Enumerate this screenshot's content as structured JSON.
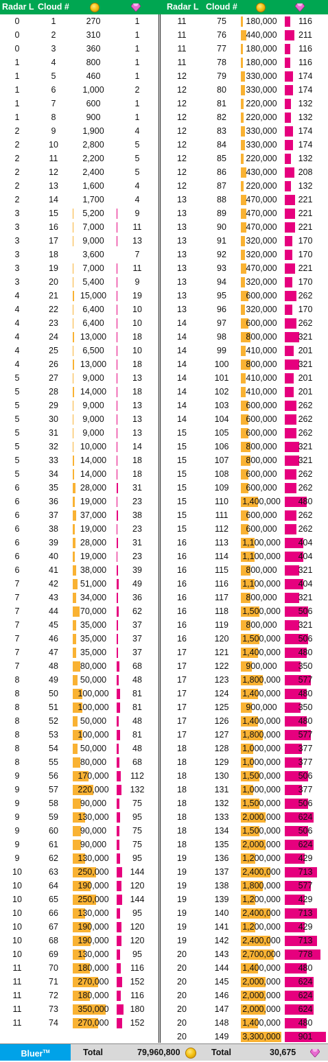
{
  "headers": {
    "radar": "Radar L",
    "cloud": "Cloud #",
    "coin_icon": "gold-coin-icon",
    "gem_icon": "pink-gem-icon"
  },
  "colors": {
    "header_bg": "#00a651",
    "gold_bar": "#f9b233",
    "gem_bar": "#e6007e",
    "brand_bg": "#00a2e8"
  },
  "left_rows": [
    {
      "radar": "0",
      "cloud": "1",
      "gold": "270",
      "gems": "1"
    },
    {
      "radar": "0",
      "cloud": "2",
      "gold": "310",
      "gems": "1"
    },
    {
      "radar": "0",
      "cloud": "3",
      "gold": "360",
      "gems": "1"
    },
    {
      "radar": "1",
      "cloud": "4",
      "gold": "800",
      "gems": "1"
    },
    {
      "radar": "1",
      "cloud": "5",
      "gold": "460",
      "gems": "1"
    },
    {
      "radar": "1",
      "cloud": "6",
      "gold": "1,000",
      "gems": "2"
    },
    {
      "radar": "1",
      "cloud": "7",
      "gold": "600",
      "gems": "1"
    },
    {
      "radar": "1",
      "cloud": "8",
      "gold": "900",
      "gems": "1"
    },
    {
      "radar": "2",
      "cloud": "9",
      "gold": "1,900",
      "gems": "4"
    },
    {
      "radar": "2",
      "cloud": "10",
      "gold": "2,800",
      "gems": "5"
    },
    {
      "radar": "2",
      "cloud": "11",
      "gold": "2,200",
      "gems": "5"
    },
    {
      "radar": "2",
      "cloud": "12",
      "gold": "2,400",
      "gems": "5"
    },
    {
      "radar": "2",
      "cloud": "13",
      "gold": "1,600",
      "gems": "4"
    },
    {
      "radar": "2",
      "cloud": "14",
      "gold": "1,700",
      "gems": "4"
    },
    {
      "radar": "3",
      "cloud": "15",
      "gold": "5,200",
      "gems": "9"
    },
    {
      "radar": "3",
      "cloud": "16",
      "gold": "7,000",
      "gems": "11"
    },
    {
      "radar": "3",
      "cloud": "17",
      "gold": "9,000",
      "gems": "13"
    },
    {
      "radar": "3",
      "cloud": "18",
      "gold": "3,600",
      "gems": "7"
    },
    {
      "radar": "3",
      "cloud": "19",
      "gold": "7,000",
      "gems": "11"
    },
    {
      "radar": "3",
      "cloud": "20",
      "gold": "5,400",
      "gems": "9"
    },
    {
      "radar": "4",
      "cloud": "21",
      "gold": "15,000",
      "gems": "19"
    },
    {
      "radar": "4",
      "cloud": "22",
      "gold": "6,400",
      "gems": "10"
    },
    {
      "radar": "4",
      "cloud": "23",
      "gold": "6,400",
      "gems": "10"
    },
    {
      "radar": "4",
      "cloud": "24",
      "gold": "13,000",
      "gems": "18"
    },
    {
      "radar": "4",
      "cloud": "25",
      "gold": "6,500",
      "gems": "10"
    },
    {
      "radar": "4",
      "cloud": "26",
      "gold": "13,000",
      "gems": "18"
    },
    {
      "radar": "5",
      "cloud": "27",
      "gold": "9,000",
      "gems": "13"
    },
    {
      "radar": "5",
      "cloud": "28",
      "gold": "14,000",
      "gems": "18"
    },
    {
      "radar": "5",
      "cloud": "29",
      "gold": "9,000",
      "gems": "13"
    },
    {
      "radar": "5",
      "cloud": "30",
      "gold": "9,000",
      "gems": "13"
    },
    {
      "radar": "5",
      "cloud": "31",
      "gold": "9,000",
      "gems": "13"
    },
    {
      "radar": "5",
      "cloud": "32",
      "gold": "10,000",
      "gems": "14"
    },
    {
      "radar": "5",
      "cloud": "33",
      "gold": "14,000",
      "gems": "18"
    },
    {
      "radar": "5",
      "cloud": "34",
      "gold": "14,000",
      "gems": "18"
    },
    {
      "radar": "6",
      "cloud": "35",
      "gold": "28,000",
      "gems": "31"
    },
    {
      "radar": "6",
      "cloud": "36",
      "gold": "19,000",
      "gems": "23"
    },
    {
      "radar": "6",
      "cloud": "37",
      "gold": "37,000",
      "gems": "38"
    },
    {
      "radar": "6",
      "cloud": "38",
      "gold": "19,000",
      "gems": "23"
    },
    {
      "radar": "6",
      "cloud": "39",
      "gold": "28,000",
      "gems": "31"
    },
    {
      "radar": "6",
      "cloud": "40",
      "gold": "19,000",
      "gems": "23"
    },
    {
      "radar": "6",
      "cloud": "41",
      "gold": "38,000",
      "gems": "39"
    },
    {
      "radar": "7",
      "cloud": "42",
      "gold": "51,000",
      "gems": "49"
    },
    {
      "radar": "7",
      "cloud": "43",
      "gold": "34,000",
      "gems": "36"
    },
    {
      "radar": "7",
      "cloud": "44",
      "gold": "70,000",
      "gems": "62"
    },
    {
      "radar": "7",
      "cloud": "45",
      "gold": "35,000",
      "gems": "37"
    },
    {
      "radar": "7",
      "cloud": "46",
      "gold": "35,000",
      "gems": "37"
    },
    {
      "radar": "7",
      "cloud": "47",
      "gold": "35,000",
      "gems": "37"
    },
    {
      "radar": "7",
      "cloud": "48",
      "gold": "80,000",
      "gems": "68"
    },
    {
      "radar": "8",
      "cloud": "49",
      "gold": "50,000",
      "gems": "48"
    },
    {
      "radar": "8",
      "cloud": "50",
      "gold": "100,000",
      "gems": "81"
    },
    {
      "radar": "8",
      "cloud": "51",
      "gold": "100,000",
      "gems": "81"
    },
    {
      "radar": "8",
      "cloud": "52",
      "gold": "50,000",
      "gems": "48"
    },
    {
      "radar": "8",
      "cloud": "53",
      "gold": "100,000",
      "gems": "81"
    },
    {
      "radar": "8",
      "cloud": "54",
      "gold": "50,000",
      "gems": "48"
    },
    {
      "radar": "8",
      "cloud": "55",
      "gold": "80,000",
      "gems": "68"
    },
    {
      "radar": "9",
      "cloud": "56",
      "gold": "170,000",
      "gems": "112"
    },
    {
      "radar": "9",
      "cloud": "57",
      "gold": "220,000",
      "gems": "132"
    },
    {
      "radar": "9",
      "cloud": "58",
      "gold": "90,000",
      "gems": "75"
    },
    {
      "radar": "9",
      "cloud": "59",
      "gold": "130,000",
      "gems": "95"
    },
    {
      "radar": "9",
      "cloud": "60",
      "gold": "90,000",
      "gems": "75"
    },
    {
      "radar": "9",
      "cloud": "61",
      "gold": "90,000",
      "gems": "75"
    },
    {
      "radar": "9",
      "cloud": "62",
      "gold": "130,000",
      "gems": "95"
    },
    {
      "radar": "10",
      "cloud": "63",
      "gold": "250,000",
      "gems": "144"
    },
    {
      "radar": "10",
      "cloud": "64",
      "gold": "190,000",
      "gems": "120"
    },
    {
      "radar": "10",
      "cloud": "65",
      "gold": "250,000",
      "gems": "144"
    },
    {
      "radar": "10",
      "cloud": "66",
      "gold": "130,000",
      "gems": "95"
    },
    {
      "radar": "10",
      "cloud": "67",
      "gold": "190,000",
      "gems": "120"
    },
    {
      "radar": "10",
      "cloud": "68",
      "gold": "190,000",
      "gems": "120"
    },
    {
      "radar": "10",
      "cloud": "69",
      "gold": "130,000",
      "gems": "95"
    },
    {
      "radar": "11",
      "cloud": "70",
      "gold": "180,000",
      "gems": "116"
    },
    {
      "radar": "11",
      "cloud": "71",
      "gold": "270,000",
      "gems": "152"
    },
    {
      "radar": "11",
      "cloud": "72",
      "gold": "180,000",
      "gems": "116"
    },
    {
      "radar": "11",
      "cloud": "73",
      "gold": "350,000",
      "gems": "180"
    },
    {
      "radar": "11",
      "cloud": "74",
      "gold": "270,000",
      "gems": "152"
    }
  ],
  "right_rows": [
    {
      "radar": "11",
      "cloud": "75",
      "gold": "180,000",
      "gems": "116"
    },
    {
      "radar": "11",
      "cloud": "76",
      "gold": "440,000",
      "gems": "211"
    },
    {
      "radar": "11",
      "cloud": "77",
      "gold": "180,000",
      "gems": "116"
    },
    {
      "radar": "11",
      "cloud": "78",
      "gold": "180,000",
      "gems": "116"
    },
    {
      "radar": "12",
      "cloud": "79",
      "gold": "330,000",
      "gems": "174"
    },
    {
      "radar": "12",
      "cloud": "80",
      "gold": "330,000",
      "gems": "174"
    },
    {
      "radar": "12",
      "cloud": "81",
      "gold": "220,000",
      "gems": "132"
    },
    {
      "radar": "12",
      "cloud": "82",
      "gold": "220,000",
      "gems": "132"
    },
    {
      "radar": "12",
      "cloud": "83",
      "gold": "330,000",
      "gems": "174"
    },
    {
      "radar": "12",
      "cloud": "84",
      "gold": "330,000",
      "gems": "174"
    },
    {
      "radar": "12",
      "cloud": "85",
      "gold": "220,000",
      "gems": "132"
    },
    {
      "radar": "12",
      "cloud": "86",
      "gold": "430,000",
      "gems": "208"
    },
    {
      "radar": "12",
      "cloud": "87",
      "gold": "220,000",
      "gems": "132"
    },
    {
      "radar": "13",
      "cloud": "88",
      "gold": "470,000",
      "gems": "221"
    },
    {
      "radar": "13",
      "cloud": "89",
      "gold": "470,000",
      "gems": "221"
    },
    {
      "radar": "13",
      "cloud": "90",
      "gold": "470,000",
      "gems": "221"
    },
    {
      "radar": "13",
      "cloud": "91",
      "gold": "320,000",
      "gems": "170"
    },
    {
      "radar": "13",
      "cloud": "92",
      "gold": "320,000",
      "gems": "170"
    },
    {
      "radar": "13",
      "cloud": "93",
      "gold": "470,000",
      "gems": "221"
    },
    {
      "radar": "13",
      "cloud": "94",
      "gold": "320,000",
      "gems": "170"
    },
    {
      "radar": "13",
      "cloud": "95",
      "gold": "600,000",
      "gems": "262"
    },
    {
      "radar": "13",
      "cloud": "96",
      "gold": "320,000",
      "gems": "170"
    },
    {
      "radar": "14",
      "cloud": "97",
      "gold": "600,000",
      "gems": "262"
    },
    {
      "radar": "14",
      "cloud": "98",
      "gold": "800,000",
      "gems": "321"
    },
    {
      "radar": "14",
      "cloud": "99",
      "gold": "410,000",
      "gems": "201"
    },
    {
      "radar": "14",
      "cloud": "100",
      "gold": "800,000",
      "gems": "321"
    },
    {
      "radar": "14",
      "cloud": "101",
      "gold": "410,000",
      "gems": "201"
    },
    {
      "radar": "14",
      "cloud": "102",
      "gold": "410,000",
      "gems": "201"
    },
    {
      "radar": "14",
      "cloud": "103",
      "gold": "600,000",
      "gems": "262"
    },
    {
      "radar": "14",
      "cloud": "104",
      "gold": "600,000",
      "gems": "262"
    },
    {
      "radar": "15",
      "cloud": "105",
      "gold": "600,000",
      "gems": "262"
    },
    {
      "radar": "15",
      "cloud": "106",
      "gold": "800,000",
      "gems": "321"
    },
    {
      "radar": "15",
      "cloud": "107",
      "gold": "800,000",
      "gems": "321"
    },
    {
      "radar": "15",
      "cloud": "108",
      "gold": "600,000",
      "gems": "262"
    },
    {
      "radar": "15",
      "cloud": "109",
      "gold": "600,000",
      "gems": "262"
    },
    {
      "radar": "15",
      "cloud": "110",
      "gold": "1,400,000",
      "gems": "480"
    },
    {
      "radar": "15",
      "cloud": "111",
      "gold": "600,000",
      "gems": "262"
    },
    {
      "radar": "15",
      "cloud": "112",
      "gold": "600,000",
      "gems": "262"
    },
    {
      "radar": "16",
      "cloud": "113",
      "gold": "1,100,000",
      "gems": "404"
    },
    {
      "radar": "16",
      "cloud": "114",
      "gold": "1,100,000",
      "gems": "404"
    },
    {
      "radar": "16",
      "cloud": "115",
      "gold": "800,000",
      "gems": "321"
    },
    {
      "radar": "16",
      "cloud": "116",
      "gold": "1,100,000",
      "gems": "404"
    },
    {
      "radar": "16",
      "cloud": "117",
      "gold": "800,000",
      "gems": "321"
    },
    {
      "radar": "16",
      "cloud": "118",
      "gold": "1,500,000",
      "gems": "506"
    },
    {
      "radar": "16",
      "cloud": "119",
      "gold": "800,000",
      "gems": "321"
    },
    {
      "radar": "16",
      "cloud": "120",
      "gold": "1,500,000",
      "gems": "506"
    },
    {
      "radar": "17",
      "cloud": "121",
      "gold": "1,400,000",
      "gems": "480"
    },
    {
      "radar": "17",
      "cloud": "122",
      "gold": "900,000",
      "gems": "350"
    },
    {
      "radar": "17",
      "cloud": "123",
      "gold": "1,800,000",
      "gems": "577"
    },
    {
      "radar": "17",
      "cloud": "124",
      "gold": "1,400,000",
      "gems": "480"
    },
    {
      "radar": "17",
      "cloud": "125",
      "gold": "900,000",
      "gems": "350"
    },
    {
      "radar": "17",
      "cloud": "126",
      "gold": "1,400,000",
      "gems": "480"
    },
    {
      "radar": "17",
      "cloud": "127",
      "gold": "1,800,000",
      "gems": "577"
    },
    {
      "radar": "18",
      "cloud": "128",
      "gold": "1,000,000",
      "gems": "377"
    },
    {
      "radar": "18",
      "cloud": "129",
      "gold": "1,000,000",
      "gems": "377"
    },
    {
      "radar": "18",
      "cloud": "130",
      "gold": "1,500,000",
      "gems": "506"
    },
    {
      "radar": "18",
      "cloud": "131",
      "gold": "1,000,000",
      "gems": "377"
    },
    {
      "radar": "18",
      "cloud": "132",
      "gold": "1,500,000",
      "gems": "506"
    },
    {
      "radar": "18",
      "cloud": "133",
      "gold": "2,000,000",
      "gems": "624"
    },
    {
      "radar": "18",
      "cloud": "134",
      "gold": "1,500,000",
      "gems": "506"
    },
    {
      "radar": "18",
      "cloud": "135",
      "gold": "2,000,000",
      "gems": "624"
    },
    {
      "radar": "19",
      "cloud": "136",
      "gold": "1,200,000",
      "gems": "429"
    },
    {
      "radar": "19",
      "cloud": "137",
      "gold": "2,400,000",
      "gems": "713"
    },
    {
      "radar": "19",
      "cloud": "138",
      "gold": "1,800,000",
      "gems": "577"
    },
    {
      "radar": "19",
      "cloud": "139",
      "gold": "1,200,000",
      "gems": "429"
    },
    {
      "radar": "19",
      "cloud": "140",
      "gold": "2,400,000",
      "gems": "713"
    },
    {
      "radar": "19",
      "cloud": "141",
      "gold": "1,200,000",
      "gems": "429"
    },
    {
      "radar": "19",
      "cloud": "142",
      "gold": "2,400,000",
      "gems": "713"
    },
    {
      "radar": "20",
      "cloud": "143",
      "gold": "2,700,000",
      "gems": "778"
    },
    {
      "radar": "20",
      "cloud": "144",
      "gold": "1,400,000",
      "gems": "480"
    },
    {
      "radar": "20",
      "cloud": "145",
      "gold": "2,000,000",
      "gems": "624"
    },
    {
      "radar": "20",
      "cloud": "146",
      "gold": "2,000,000",
      "gems": "624"
    },
    {
      "radar": "20",
      "cloud": "147",
      "gold": "2,000,000",
      "gems": "624"
    },
    {
      "radar": "20",
      "cloud": "148",
      "gold": "1,400,000",
      "gems": "480"
    },
    {
      "radar": "20",
      "cloud": "149",
      "gold": "3,300,000",
      "gems": "901"
    }
  ],
  "footer": {
    "brand": "Bluer",
    "trademark": "TM",
    "total_label_1": "Total",
    "total_gold": "79,960,800",
    "total_label_2": "Total",
    "total_gems": "30,675"
  }
}
